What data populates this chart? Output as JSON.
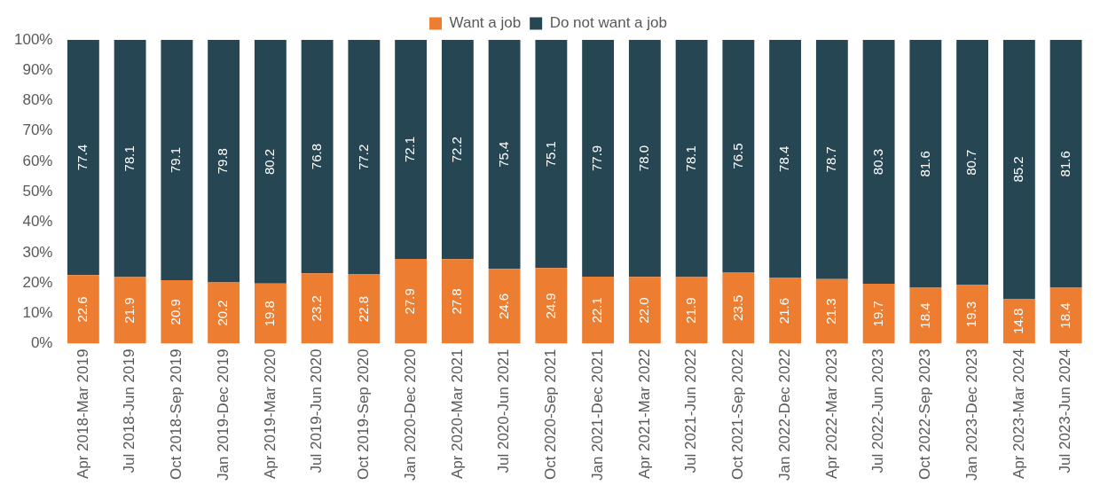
{
  "chart_data": {
    "type": "bar",
    "stacked": true,
    "legend": "top",
    "grid": false,
    "categories": [
      "Apr 2018-Mar 2019",
      "Jul 2018-Jun 2019",
      "Oct 2018-Sep 2019",
      "Jan 2019-Dec 2019",
      "Apr 2019-Mar 2020",
      "Jul 2019-Jun 2020",
      "Oct 2019-Sep 2020",
      "Jan 2020-Dec 2020",
      "Apr 2020-Mar 2021",
      "Jul 2020-Jun 2021",
      "Oct 2020-Sep 2021",
      "Jan 2021-Dec 2021",
      "Apr 2021-Mar 2022",
      "Jul 2021-Jun 2022",
      "Oct 2021-Sep 2022",
      "Jan 2022-Dec 2022",
      "Apr 2022-Mar 2023",
      "Jul 2022-Jun 2023",
      "Oct 2022-Sep 2023",
      "Jan 2023-Dec 2023",
      "Apr 2023-Mar 2024",
      "Jul 2023-Jun 2024"
    ],
    "ylim": [
      0,
      100
    ],
    "yticks": [
      {
        "value": 0,
        "label": "0%"
      },
      {
        "value": 10,
        "label": "10%"
      },
      {
        "value": 20,
        "label": "20%"
      },
      {
        "value": 30,
        "label": "30%"
      },
      {
        "value": 40,
        "label": "40%"
      },
      {
        "value": 50,
        "label": "50%"
      },
      {
        "value": 60,
        "label": "60%"
      },
      {
        "value": 70,
        "label": "70%"
      },
      {
        "value": 80,
        "label": "80%"
      },
      {
        "value": 90,
        "label": "90%"
      },
      {
        "value": 100,
        "label": "100%"
      }
    ],
    "series": [
      {
        "name": "Want a job",
        "color": "#ed7d31",
        "values": [
          22.6,
          21.9,
          20.9,
          20.2,
          19.8,
          23.2,
          22.8,
          27.9,
          27.8,
          24.6,
          24.9,
          22.1,
          22.0,
          21.9,
          23.5,
          21.6,
          21.3,
          19.7,
          18.4,
          19.3,
          14.8,
          18.4
        ],
        "value_labels": [
          "22.6",
          "21.9",
          "20.9",
          "20.2",
          "19.8",
          "23.2",
          "22.8",
          "27.9",
          "27.8",
          "24.6",
          "24.9",
          "22.1",
          "22.0",
          "21.9",
          "23.5",
          "21.6",
          "21.3",
          "19.7",
          "18.4",
          "19.3",
          "14.8",
          "18.4"
        ]
      },
      {
        "name": "Do not want a job",
        "color": "#264653",
        "values": [
          77.4,
          78.1,
          79.1,
          79.8,
          80.2,
          76.8,
          77.2,
          72.1,
          72.2,
          75.4,
          75.1,
          77.9,
          78.0,
          78.1,
          76.5,
          78.4,
          78.7,
          80.3,
          81.6,
          80.7,
          85.2,
          81.6
        ],
        "value_labels": [
          "77.4",
          "78.1",
          "79.1",
          "79.8",
          "80.2",
          "76.8",
          "77.2",
          "72.1",
          "72.2",
          "75.4",
          "75.1",
          "77.9",
          "78.0",
          "78.1",
          "76.5",
          "78.4",
          "78.7",
          "80.3",
          "81.6",
          "80.7",
          "85.2",
          "81.6"
        ]
      }
    ]
  }
}
